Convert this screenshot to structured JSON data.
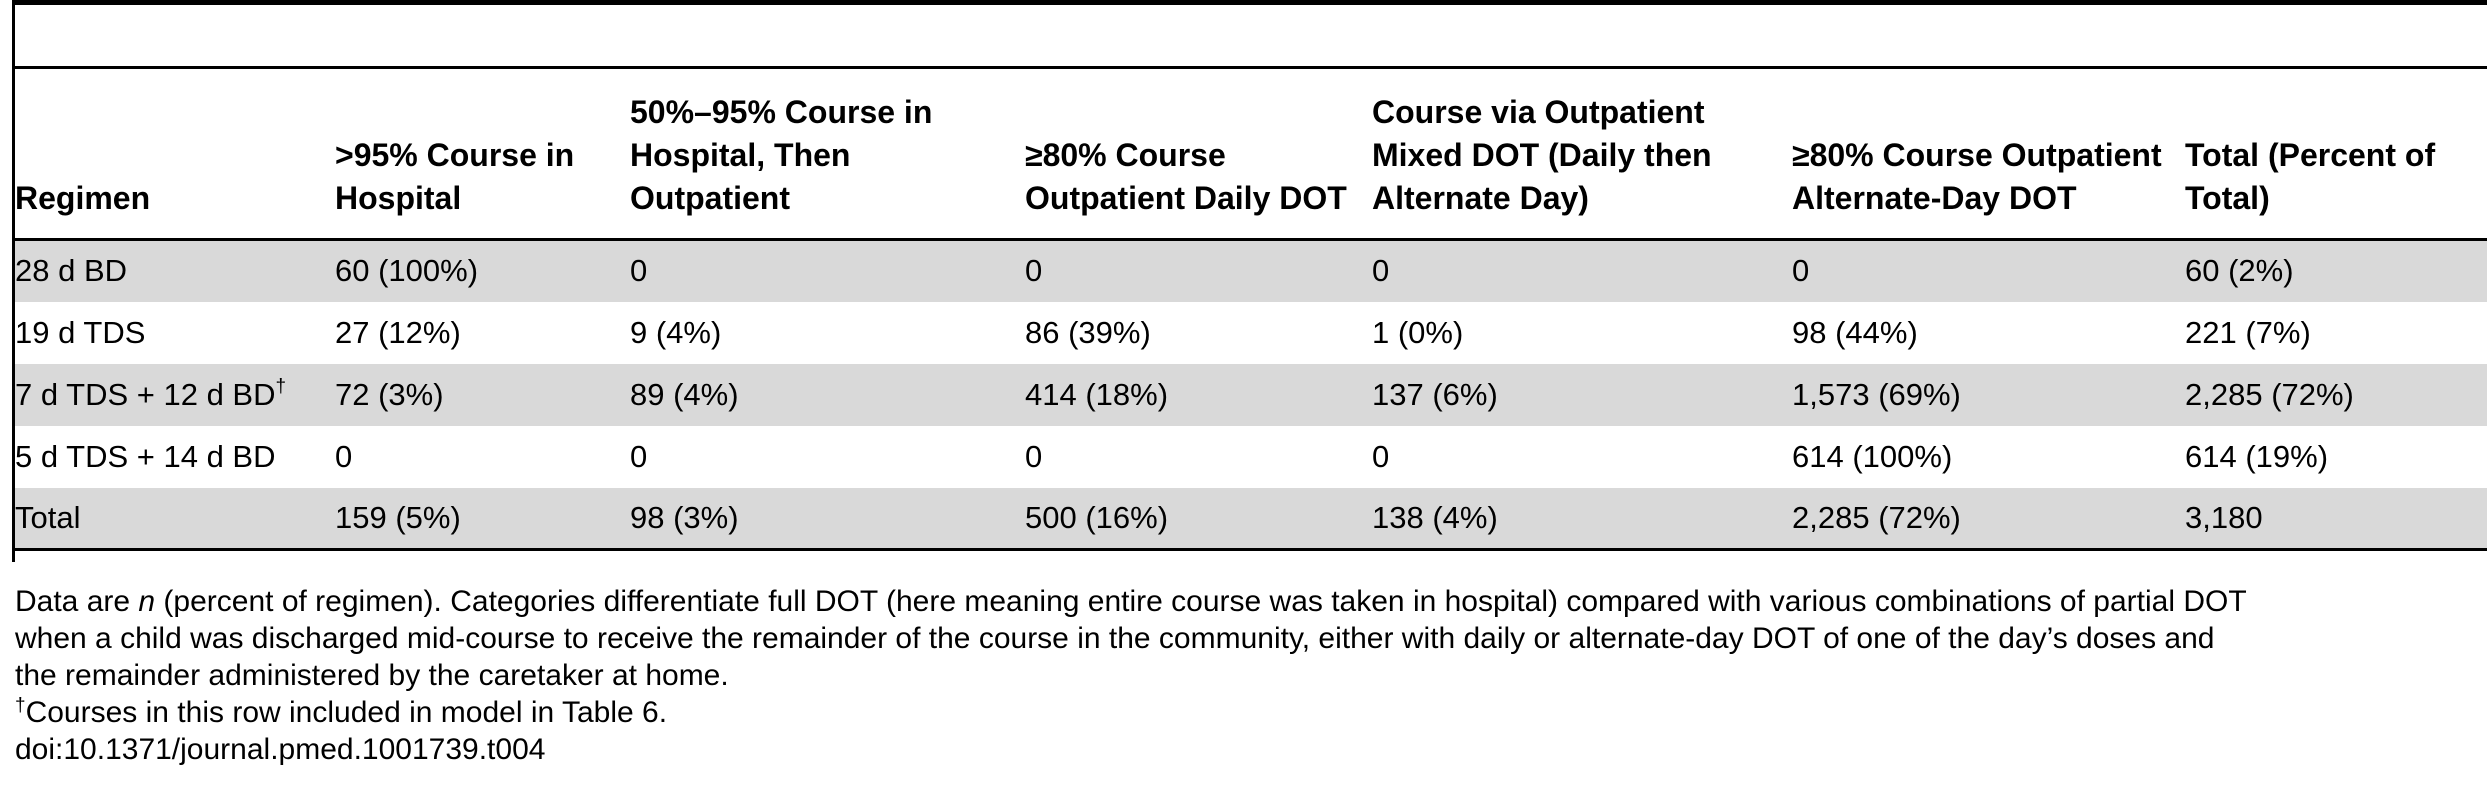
{
  "table": {
    "headers": [
      "Regimen",
      ">95% Course in Hospital",
      "50%–95% Course in Hospital, Then Outpatient",
      "≥80% Course Outpatient Daily DOT",
      "Course via Outpatient Mixed DOT (Daily then Alternate Day)",
      "≥80% Course Outpatient Alternate-Day DOT",
      "Total (Percent of Total)"
    ],
    "rows": [
      {
        "regimen": "28 d BD",
        "footnote_mark": "",
        "cells": [
          "60 (100%)",
          "0",
          "0",
          "0",
          "0",
          "60 (2%)"
        ]
      },
      {
        "regimen": "19 d TDS",
        "footnote_mark": "",
        "cells": [
          "27 (12%)",
          "9 (4%)",
          "86 (39%)",
          "1 (0%)",
          "98 (44%)",
          "221 (7%)"
        ]
      },
      {
        "regimen": "7 d TDS + 12 d BD",
        "footnote_mark": "†",
        "cells": [
          "72 (3%)",
          "89 (4%)",
          "414 (18%)",
          "137 (6%)",
          "1,573 (69%)",
          "2,285 (72%)"
        ]
      },
      {
        "regimen": "5 d TDS + 14 d BD",
        "footnote_mark": "",
        "cells": [
          "0",
          "0",
          "0",
          "0",
          "614 (100%)",
          "614 (19%)"
        ]
      },
      {
        "regimen": "Total",
        "footnote_mark": "",
        "cells": [
          "159 (5%)",
          "98 (3%)",
          "500 (16%)",
          "138 (4%)",
          "2,285 (72%)",
          "3,180"
        ]
      }
    ]
  },
  "notes": {
    "line1_start": "Data are ",
    "line1_n": "n",
    "line1_rest": " (percent of regimen). Categories differentiate full DOT (here meaning entire course was taken in hospital) compared with various combinations of partial DOT",
    "line2": "when a child was discharged mid-course to receive the remainder of the course in the community, either with daily or alternate-day DOT of one of the day’s doses and",
    "line3": "the remainder administered by the caretaker at home.",
    "footnote_mark": "†",
    "footnote_text": "Courses in this row included in model in Table 6.",
    "doi": "doi:10.1371/journal.pmed.1001739.t004"
  }
}
